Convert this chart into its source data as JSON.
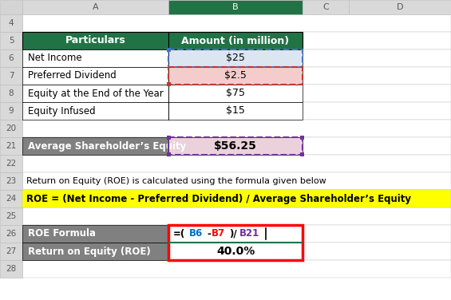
{
  "col_header_bg": "#217346",
  "col_header_text": "#ffffff",
  "gray_row_bg": "#808080",
  "yellow_row_bg": "#ffff00",
  "cell_b6_bg": "#dce6f1",
  "cell_b7_bg": "#f4cccc",
  "cell_b21_bg": "#ead1dc",
  "header_row": [
    "Particulars",
    "Amount (in million)"
  ],
  "data_rows": [
    [
      "Net Income",
      "$25"
    ],
    [
      "Preferred Dividend",
      "$2.5"
    ],
    [
      "Equity at the End of the Year",
      "$75"
    ],
    [
      "Equity Infused",
      "$15"
    ]
  ],
  "avg_label": "Average Shareholder’s Equity",
  "avg_value": "$56.25",
  "note_text": "Return on Equity (ROE) is calculated using the formula given below",
  "formula_text": "ROE = (Net Income - Preferred Dividend) / Average Shareholder’s Equity",
  "roe_formula_label": "ROE Formula",
  "roe_formula_parts": [
    {
      "text": "=(",
      "color": "#000000"
    },
    {
      "text": "B6",
      "color": "#0070c0"
    },
    {
      "text": "-",
      "color": "#000000"
    },
    {
      "text": "B7",
      "color": "#ff0000"
    },
    {
      "text": ")/",
      "color": "#000000"
    },
    {
      "text": "B21",
      "color": "#7030a0"
    }
  ],
  "roe_label": "Return on Equity (ROE)",
  "roe_value": "40.0%",
  "fig_bg": "#f2f2f2",
  "header_col_bg": "#d9d9d9",
  "border_color": "#bfbfbf"
}
